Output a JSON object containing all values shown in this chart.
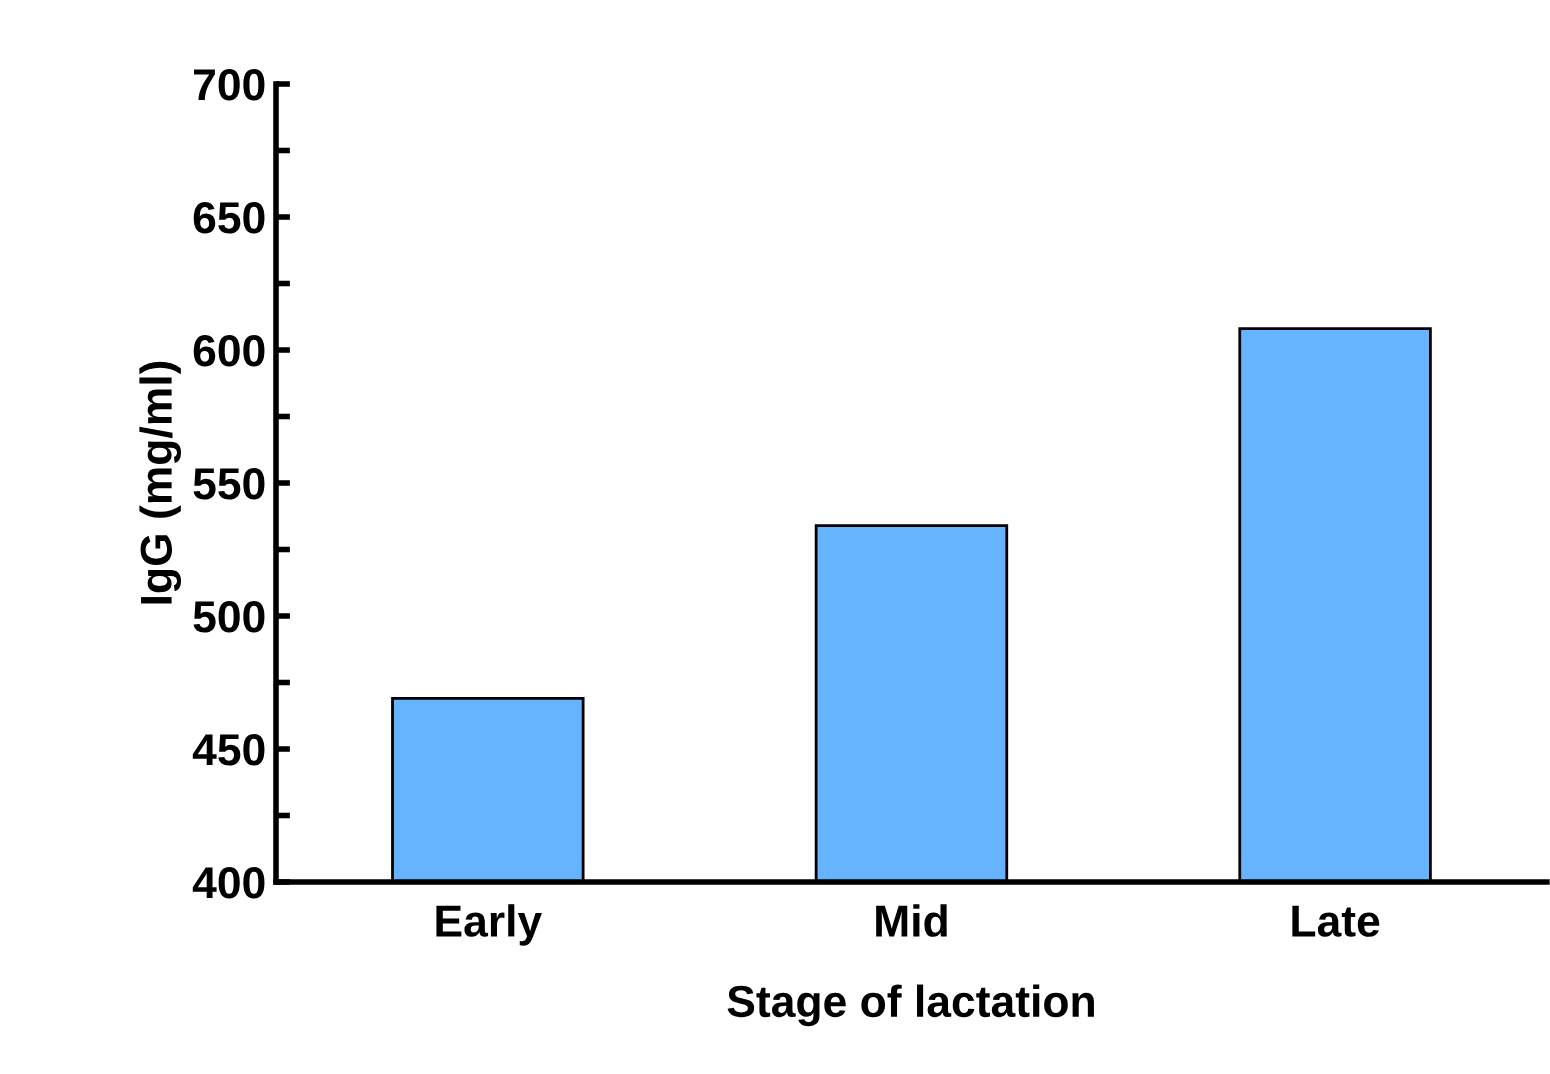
{
  "chart_data": {
    "type": "bar",
    "xlabel": "Stage of lactation",
    "ylabel": "IgG (mg/ml)",
    "categories": [
      "Early",
      "Mid",
      "Late"
    ],
    "values": [
      469,
      534,
      608
    ],
    "color": "#66b3ff",
    "ylim": [
      400,
      700
    ],
    "yticks": [
      400,
      {
        "value": 425,
        "label": null
      },
      450,
      {
        "value": 475,
        "label": null
      },
      500,
      {
        "value": 525,
        "label": null
      },
      550,
      {
        "value": 575,
        "label": null
      },
      600,
      {
        "value": 625,
        "label": null
      },
      650,
      {
        "value": 675,
        "label": null
      },
      700
    ],
    "grid": false,
    "legend": false
  }
}
